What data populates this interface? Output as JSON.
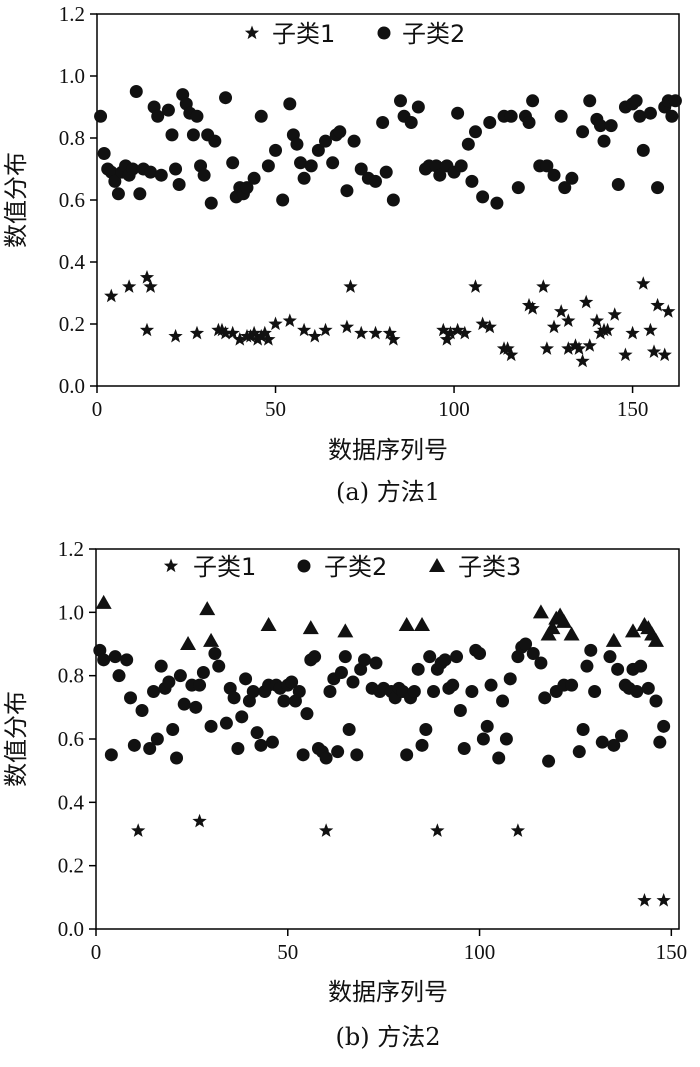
{
  "chart_data": [
    {
      "type": "scatter",
      "caption": "(a) 方法1",
      "xlabel": "数据序列号",
      "ylabel": "数值分布",
      "xlim": [
        0,
        163
      ],
      "ylim": [
        0,
        1.2
      ],
      "xticks": [
        "0",
        "50",
        "100",
        "150"
      ],
      "xtick_values": [
        0,
        50,
        100,
        150
      ],
      "yticks": [
        "0.0",
        "0.2",
        "0.4",
        "0.6",
        "0.8",
        "1.0",
        "1.2"
      ],
      "ytick_values": [
        0,
        0.2,
        0.4,
        0.6,
        0.8,
        1.0,
        1.2
      ],
      "legend_position": "top",
      "series": [
        {
          "name": "子类1",
          "marker": "star",
          "x": [
            4,
            9,
            14,
            14,
            15,
            22,
            28,
            34,
            35,
            36,
            38,
            40,
            42,
            43,
            44,
            45,
            46,
            47,
            48,
            50,
            54,
            58,
            61,
            64,
            70,
            71,
            74,
            78,
            82,
            83,
            97,
            98,
            99,
            101,
            103,
            106,
            108,
            110,
            114,
            115,
            116,
            121,
            122,
            125,
            126,
            128,
            130,
            132,
            132,
            134,
            135,
            136,
            137,
            138,
            140,
            141,
            142,
            143,
            145,
            148,
            150,
            153,
            155,
            156,
            157,
            159,
            160
          ],
          "y": [
            0.29,
            0.32,
            0.35,
            0.18,
            0.32,
            0.16,
            0.17,
            0.18,
            0.18,
            0.17,
            0.17,
            0.15,
            0.16,
            0.16,
            0.17,
            0.15,
            0.16,
            0.17,
            0.15,
            0.2,
            0.21,
            0.18,
            0.16,
            0.18,
            0.19,
            0.32,
            0.17,
            0.17,
            0.17,
            0.15,
            0.18,
            0.15,
            0.17,
            0.18,
            0.17,
            0.32,
            0.2,
            0.19,
            0.12,
            0.12,
            0.1,
            0.26,
            0.25,
            0.32,
            0.12,
            0.19,
            0.24,
            0.12,
            0.21,
            0.13,
            0.12,
            0.08,
            0.27,
            0.13,
            0.21,
            0.17,
            0.18,
            0.18,
            0.23,
            0.1,
            0.17,
            0.33,
            0.18,
            0.11,
            0.26,
            0.1,
            0.24
          ]
        },
        {
          "name": "子类2",
          "marker": "circle",
          "x": [
            1,
            2,
            3,
            4,
            5,
            6,
            7,
            8,
            9,
            10,
            11,
            12,
            13,
            15,
            16,
            17,
            18,
            20,
            21,
            22,
            23,
            24,
            25,
            26,
            27,
            28,
            29,
            30,
            31,
            32,
            33,
            36,
            38,
            39,
            40,
            41,
            42,
            44,
            46,
            48,
            50,
            52,
            54,
            55,
            56,
            57,
            58,
            60,
            62,
            64,
            66,
            67,
            68,
            70,
            72,
            74,
            76,
            78,
            80,
            81,
            83,
            85,
            86,
            88,
            90,
            92,
            93,
            95,
            96,
            98,
            100,
            101,
            102,
            104,
            105,
            106,
            108,
            110,
            112,
            114,
            116,
            118,
            120,
            121,
            122,
            124,
            126,
            128,
            130,
            131,
            133,
            136,
            138,
            140,
            141,
            142,
            144,
            146,
            148,
            150,
            151,
            152,
            153,
            155,
            157,
            159,
            160,
            161,
            162
          ],
          "y": [
            0.87,
            0.75,
            0.7,
            0.69,
            0.66,
            0.62,
            0.69,
            0.71,
            0.68,
            0.7,
            0.95,
            0.62,
            0.7,
            0.69,
            0.9,
            0.87,
            0.68,
            0.89,
            0.81,
            0.7,
            0.65,
            0.94,
            0.91,
            0.88,
            0.81,
            0.87,
            0.71,
            0.68,
            0.81,
            0.59,
            0.79,
            0.93,
            0.72,
            0.61,
            0.64,
            0.62,
            0.64,
            0.67,
            0.87,
            0.71,
            0.76,
            0.6,
            0.91,
            0.81,
            0.78,
            0.72,
            0.67,
            0.71,
            0.76,
            0.79,
            0.72,
            0.81,
            0.82,
            0.63,
            0.79,
            0.7,
            0.67,
            0.66,
            0.85,
            0.69,
            0.6,
            0.92,
            0.87,
            0.85,
            0.9,
            0.7,
            0.71,
            0.71,
            0.68,
            0.71,
            0.69,
            0.88,
            0.71,
            0.78,
            0.66,
            0.82,
            0.61,
            0.85,
            0.59,
            0.87,
            0.87,
            0.64,
            0.87,
            0.85,
            0.92,
            0.71,
            0.71,
            0.68,
            0.87,
            0.64,
            0.67,
            0.82,
            0.92,
            0.86,
            0.84,
            0.79,
            0.84,
            0.65,
            0.9,
            0.91,
            0.92,
            0.87,
            0.76,
            0.88,
            0.64,
            0.9,
            0.92,
            0.87,
            0.92
          ]
        }
      ]
    },
    {
      "type": "scatter",
      "caption": "(b) 方法2",
      "xlabel": "数据序列号",
      "ylabel": "数值分布",
      "xlim": [
        0,
        152
      ],
      "ylim": [
        0,
        1.2
      ],
      "xticks": [
        "0",
        "50",
        "100",
        "150"
      ],
      "xtick_values": [
        0,
        50,
        100,
        150
      ],
      "yticks": [
        "0.0",
        "0.2",
        "0.4",
        "0.6",
        "0.8",
        "1.0",
        "1.2"
      ],
      "ytick_values": [
        0,
        0.2,
        0.4,
        0.6,
        0.8,
        1.0,
        1.2
      ],
      "legend_position": "top",
      "series": [
        {
          "name": "子类1",
          "marker": "star",
          "x": [
            11,
            27,
            60,
            89,
            110,
            143,
            148
          ],
          "y": [
            0.31,
            0.34,
            0.31,
            0.31,
            0.31,
            0.09,
            0.09
          ]
        },
        {
          "name": "子类2",
          "marker": "circle",
          "x": [
            1,
            2,
            4,
            5,
            6,
            8,
            9,
            10,
            12,
            14,
            15,
            16,
            17,
            18,
            19,
            20,
            21,
            22,
            23,
            25,
            26,
            27,
            28,
            30,
            31,
            32,
            34,
            35,
            36,
            37,
            38,
            39,
            40,
            41,
            42,
            43,
            44,
            45,
            46,
            47,
            48,
            49,
            50,
            51,
            52,
            53,
            54,
            55,
            56,
            57,
            58,
            59,
            60,
            61,
            62,
            63,
            64,
            65,
            66,
            67,
            68,
            69,
            70,
            72,
            73,
            74,
            75,
            77,
            78,
            79,
            80,
            81,
            82,
            83,
            84,
            85,
            86,
            87,
            88,
            89,
            90,
            91,
            92,
            93,
            94,
            95,
            96,
            98,
            99,
            100,
            101,
            102,
            103,
            105,
            106,
            107,
            108,
            110,
            111,
            112,
            114,
            116,
            117,
            118,
            120,
            122,
            124,
            126,
            127,
            128,
            129,
            130,
            132,
            134,
            135,
            136,
            137,
            138,
            139,
            140,
            141,
            142,
            144,
            146,
            147,
            148
          ],
          "y": [
            0.88,
            0.85,
            0.55,
            0.86,
            0.8,
            0.85,
            0.73,
            0.58,
            0.69,
            0.57,
            0.75,
            0.6,
            0.83,
            0.76,
            0.78,
            0.63,
            0.54,
            0.8,
            0.71,
            0.77,
            0.7,
            0.77,
            0.81,
            0.64,
            0.87,
            0.83,
            0.65,
            0.76,
            0.73,
            0.57,
            0.67,
            0.79,
            0.72,
            0.75,
            0.62,
            0.58,
            0.75,
            0.77,
            0.59,
            0.77,
            0.76,
            0.72,
            0.77,
            0.78,
            0.72,
            0.75,
            0.55,
            0.68,
            0.85,
            0.86,
            0.57,
            0.56,
            0.54,
            0.75,
            0.79,
            0.56,
            0.81,
            0.86,
            0.63,
            0.78,
            0.55,
            0.82,
            0.85,
            0.76,
            0.84,
            0.75,
            0.76,
            0.75,
            0.73,
            0.76,
            0.75,
            0.55,
            0.73,
            0.75,
            0.82,
            0.58,
            0.63,
            0.86,
            0.75,
            0.82,
            0.84,
            0.85,
            0.76,
            0.77,
            0.86,
            0.69,
            0.57,
            0.75,
            0.88,
            0.87,
            0.6,
            0.64,
            0.77,
            0.54,
            0.72,
            0.6,
            0.79,
            0.86,
            0.89,
            0.9,
            0.87,
            0.84,
            0.73,
            0.53,
            0.75,
            0.77,
            0.77,
            0.56,
            0.63,
            0.83,
            0.88,
            0.75,
            0.59,
            0.86,
            0.58,
            0.82,
            0.61,
            0.77,
            0.76,
            0.82,
            0.75,
            0.83,
            0.76,
            0.72,
            0.59,
            0.64
          ]
        },
        {
          "name": "子类3",
          "marker": "triangle",
          "x": [
            2,
            24,
            29,
            30,
            45,
            56,
            65,
            81,
            85,
            116,
            118,
            119,
            120,
            121,
            122,
            124,
            135,
            140,
            143,
            144,
            145,
            146
          ],
          "y": [
            1.03,
            0.9,
            1.01,
            0.91,
            0.96,
            0.95,
            0.94,
            0.96,
            0.96,
            1.0,
            0.93,
            0.95,
            0.98,
            0.99,
            0.97,
            0.93,
            0.91,
            0.94,
            0.96,
            0.95,
            0.93,
            0.91
          ]
        }
      ]
    }
  ]
}
